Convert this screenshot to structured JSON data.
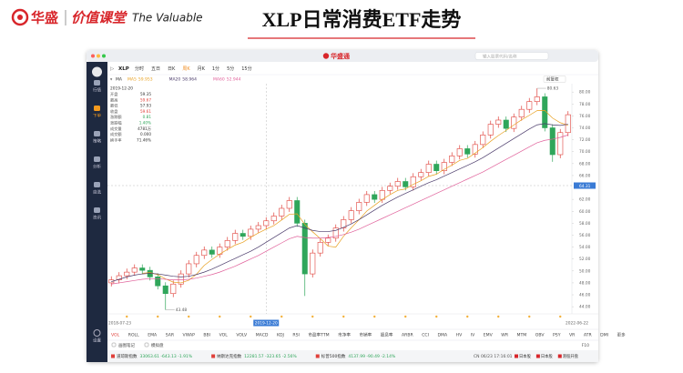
{
  "header": {
    "brand": "华盛",
    "course": "价值课堂",
    "slogan": "The Valuable",
    "title": "XLP日常消费ETF走势"
  },
  "app": {
    "logo": "华盛通",
    "search": "输入股票代码/名称",
    "sidebar": [
      "行情",
      "下单",
      "策略",
      "分析",
      "自选",
      "资讯"
    ],
    "bottom_nav": "设置",
    "symbol": "XLP",
    "periods": [
      "分时",
      "五日",
      "日K",
      "周K",
      "月K",
      "1分",
      "5分",
      "15分"
    ],
    "active_period": 3,
    "adjust": "前复权",
    "ma_label": "MA",
    "info": {
      "rows": [
        [
          "开盘",
          "59.35"
        ],
        [
          "最高",
          "59.67"
        ],
        [
          "最低",
          "57.93"
        ],
        [
          "收盘",
          "59.61"
        ],
        [
          "涨跌额",
          "0.81"
        ],
        [
          "涨跌幅",
          "1.40%"
        ],
        [
          "成交量",
          "4781万"
        ],
        [
          "成交额",
          "0.000"
        ],
        [
          "换手率",
          "71.46%"
        ]
      ]
    },
    "indicator_tabs": [
      "VOL",
      "ROLL",
      "EMA",
      "SAR",
      "VWAP",
      "BBI",
      "VOL",
      "VOLV",
      "MACD",
      "KDJ",
      "RSI",
      "市盈率TTM",
      "市净率",
      "市销率",
      "股息率",
      "ARBR",
      "CCI",
      "DMA",
      "HV",
      "IV",
      "EMV",
      "WR",
      "MTM",
      "OBV",
      "PSY",
      "VR",
      "ATR",
      "DMI",
      "更多"
    ],
    "tools": [
      "画图笔记",
      "模拟盘"
    ],
    "page_indicator": "F10",
    "tickers": [
      {
        "name": "道琼斯指数",
        "quote": "33063.61 -643.13 -1.91%"
      },
      {
        "name": "纳斯达克指数",
        "quote": "12281.57 -323.65 -2.56%"
      },
      {
        "name": "标普500指数",
        "quote": "4137.99 -90.49 -2.14%"
      }
    ],
    "status": "CN 06/23 17:16:01",
    "badges": [
      "日本股",
      "日本股",
      "港股开盘"
    ]
  },
  "chart_data": {
    "type": "candlestick",
    "categories": [
      "2018-07-23",
      null,
      null,
      null,
      null,
      null,
      null,
      null,
      null,
      null,
      null,
      null,
      null,
      null,
      null,
      null,
      null,
      null,
      null,
      null,
      "2019-12-20",
      null,
      null,
      null,
      null,
      null,
      null,
      null,
      null,
      null,
      null,
      null,
      null,
      null,
      null,
      null,
      null,
      null,
      null,
      null,
      null,
      null,
      null,
      null,
      null,
      null,
      null,
      null,
      null,
      null,
      null,
      null,
      null,
      null,
      null,
      null,
      null,
      null,
      null,
      "2022-06-22"
    ],
    "open": [
      48.0,
      48.5,
      49.2,
      49.8,
      50.5,
      50.1,
      49.0,
      47.5,
      46.2,
      47.8,
      49.5,
      51.2,
      52.6,
      53.5,
      52.8,
      54.0,
      55.1,
      56.3,
      55.8,
      57.0,
      57.6,
      58.4,
      59.2,
      60.5,
      61.8,
      58.0,
      49.5,
      53.0,
      54.8,
      55.5,
      57.2,
      58.6,
      60.1,
      61.5,
      62.8,
      62.0,
      63.5,
      64.2,
      65.0,
      64.1,
      65.8,
      66.5,
      67.9,
      66.8,
      68.2,
      69.3,
      70.5,
      69.6,
      71.2,
      72.8,
      74.6,
      75.3,
      73.9,
      75.8,
      77.1,
      78.4,
      79.2,
      74.0,
      69.5,
      73.2
    ],
    "high": [
      49.1,
      49.8,
      50.4,
      51.1,
      51.1,
      50.7,
      49.6,
      48.1,
      48.4,
      50.1,
      51.8,
      53.2,
      54.1,
      54.1,
      54.6,
      55.7,
      56.9,
      56.9,
      57.6,
      58.2,
      59.0,
      59.8,
      61.1,
      62.4,
      62.4,
      58.6,
      53.6,
      55.4,
      56.1,
      57.8,
      59.2,
      60.7,
      62.1,
      63.4,
      63.4,
      64.1,
      64.8,
      65.6,
      65.6,
      66.4,
      67.1,
      68.5,
      68.5,
      68.8,
      69.9,
      71.1,
      71.1,
      71.8,
      73.4,
      75.2,
      75.9,
      75.9,
      76.4,
      77.7,
      79.0,
      80.63,
      79.8,
      74.6,
      73.8,
      76.8
    ],
    "low": [
      47.4,
      47.9,
      48.6,
      49.2,
      49.5,
      48.4,
      46.9,
      43.48,
      45.6,
      47.2,
      48.9,
      50.6,
      52.0,
      52.2,
      52.2,
      53.4,
      54.5,
      55.2,
      55.2,
      56.4,
      57.0,
      57.8,
      58.6,
      59.9,
      57.4,
      45.8,
      48.9,
      52.4,
      54.2,
      54.9,
      56.6,
      58.0,
      59.5,
      60.9,
      61.4,
      61.4,
      62.9,
      63.6,
      63.5,
      63.5,
      65.2,
      65.9,
      66.2,
      66.2,
      67.6,
      68.7,
      69.0,
      69.0,
      70.6,
      72.2,
      74.0,
      73.3,
      73.3,
      75.2,
      76.5,
      77.8,
      73.4,
      68.3,
      68.9,
      72.6
    ],
    "close": [
      48.5,
      49.2,
      49.8,
      50.5,
      50.1,
      49.0,
      47.5,
      46.2,
      47.8,
      49.5,
      51.2,
      52.6,
      53.5,
      52.8,
      54.0,
      55.1,
      56.3,
      55.8,
      57.0,
      57.6,
      58.4,
      59.2,
      60.5,
      61.8,
      58.0,
      49.5,
      53.0,
      54.8,
      55.5,
      57.2,
      58.6,
      60.1,
      61.5,
      62.8,
      62.0,
      63.5,
      64.2,
      65.0,
      64.1,
      65.8,
      66.5,
      67.9,
      66.8,
      68.2,
      69.3,
      70.5,
      69.6,
      71.2,
      72.8,
      74.6,
      75.3,
      73.9,
      75.8,
      77.1,
      78.4,
      79.2,
      74.0,
      69.5,
      73.2,
      76.2
    ],
    "up_color": "#e0403a",
    "down_color": "#2fa65a",
    "series": [
      {
        "name": "MA5",
        "legend_value": 59.953,
        "color": "#e8a020",
        "values": [
          null,
          null,
          null,
          null,
          49.62,
          49.72,
          49.38,
          48.66,
          48.12,
          48.0,
          48.44,
          49.46,
          50.92,
          51.92,
          52.82,
          53.6,
          54.34,
          54.8,
          55.64,
          56.36,
          57.02,
          57.6,
          58.54,
          59.5,
          59.58,
          57.8,
          56.56,
          55.42,
          54.16,
          54.0,
          55.82,
          57.24,
          58.58,
          60.04,
          61.0,
          61.98,
          62.8,
          63.5,
          63.76,
          64.52,
          65.12,
          65.86,
          66.22,
          67.04,
          67.74,
          68.54,
          68.88,
          69.76,
          70.68,
          71.74,
          72.7,
          73.56,
          74.48,
          75.34,
          76.1,
          76.88,
          76.9,
          75.64,
          74.86,
          74.42
        ]
      },
      {
        "name": "MA20",
        "legend_value": 58.964,
        "color": "#4a3a6a",
        "values": [
          48.2,
          48.6,
          49.0,
          49.3,
          49.5,
          49.6,
          49.5,
          49.3,
          49.1,
          49.0,
          49.1,
          49.4,
          49.8,
          50.3,
          50.9,
          51.5,
          52.1,
          52.7,
          53.3,
          54.0,
          54.8,
          55.6,
          56.4,
          57.2,
          57.6,
          57.2,
          56.8,
          56.6,
          56.6,
          56.8,
          57.3,
          57.9,
          58.6,
          59.4,
          60.2,
          61.0,
          61.7,
          62.4,
          63.0,
          63.6,
          64.2,
          64.8,
          65.3,
          65.9,
          66.5,
          67.1,
          67.7,
          68.3,
          69.0,
          69.8,
          70.6,
          71.4,
          72.2,
          73.0,
          73.8,
          74.5,
          74.7,
          74.5,
          74.4,
          74.6
        ]
      },
      {
        "name": "MA60",
        "legend_value": 52.944,
        "color": "#e0609a",
        "values": [
          47.8,
          48.0,
          48.2,
          48.4,
          48.6,
          48.7,
          48.7,
          48.6,
          48.5,
          48.5,
          48.6,
          48.8,
          49.1,
          49.4,
          49.8,
          50.3,
          50.8,
          51.4,
          52.0,
          52.6,
          53.3,
          54.0,
          54.7,
          55.4,
          55.8,
          55.6,
          55.5,
          55.5,
          55.6,
          55.8,
          56.1,
          56.5,
          57.0,
          57.6,
          58.2,
          58.8,
          59.4,
          60.0,
          60.6,
          61.2,
          61.8,
          62.4,
          63.0,
          63.6,
          64.2,
          64.8,
          65.4,
          66.0,
          66.6,
          67.3,
          68.0,
          68.7,
          69.4,
          70.1,
          70.8,
          71.5,
          71.9,
          72.1,
          72.4,
          72.8
        ]
      }
    ],
    "ylim": [
      42.8,
      81.4
    ],
    "yticks": [
      {
        "value": 44,
        "label": "44.00"
      },
      {
        "value": 46,
        "label": "46.00"
      },
      {
        "value": 48,
        "label": "48.00"
      },
      {
        "value": 50,
        "label": "50.00"
      },
      {
        "value": 52,
        "label": "52.00"
      },
      {
        "value": 54,
        "label": "54.00"
      },
      {
        "value": 56,
        "label": "56.00"
      },
      {
        "value": 58,
        "label": "58.00"
      },
      {
        "value": 60,
        "label": "60.00"
      },
      {
        "value": 62,
        "label": "62.00"
      },
      {
        "value": 66,
        "label": "66.00"
      },
      {
        "value": 68,
        "label": "68.00"
      },
      {
        "value": 70,
        "label": "70.00"
      },
      {
        "value": 72,
        "label": "72.00"
      },
      {
        "value": 74,
        "label": "74.00"
      },
      {
        "value": 76,
        "label": "76.00"
      },
      {
        "value": 78,
        "label": "78.00"
      },
      {
        "value": 80,
        "label": "80.00"
      }
    ],
    "crosshair": {
      "value": 64.31,
      "category_index": 20
    },
    "grid": false
  }
}
